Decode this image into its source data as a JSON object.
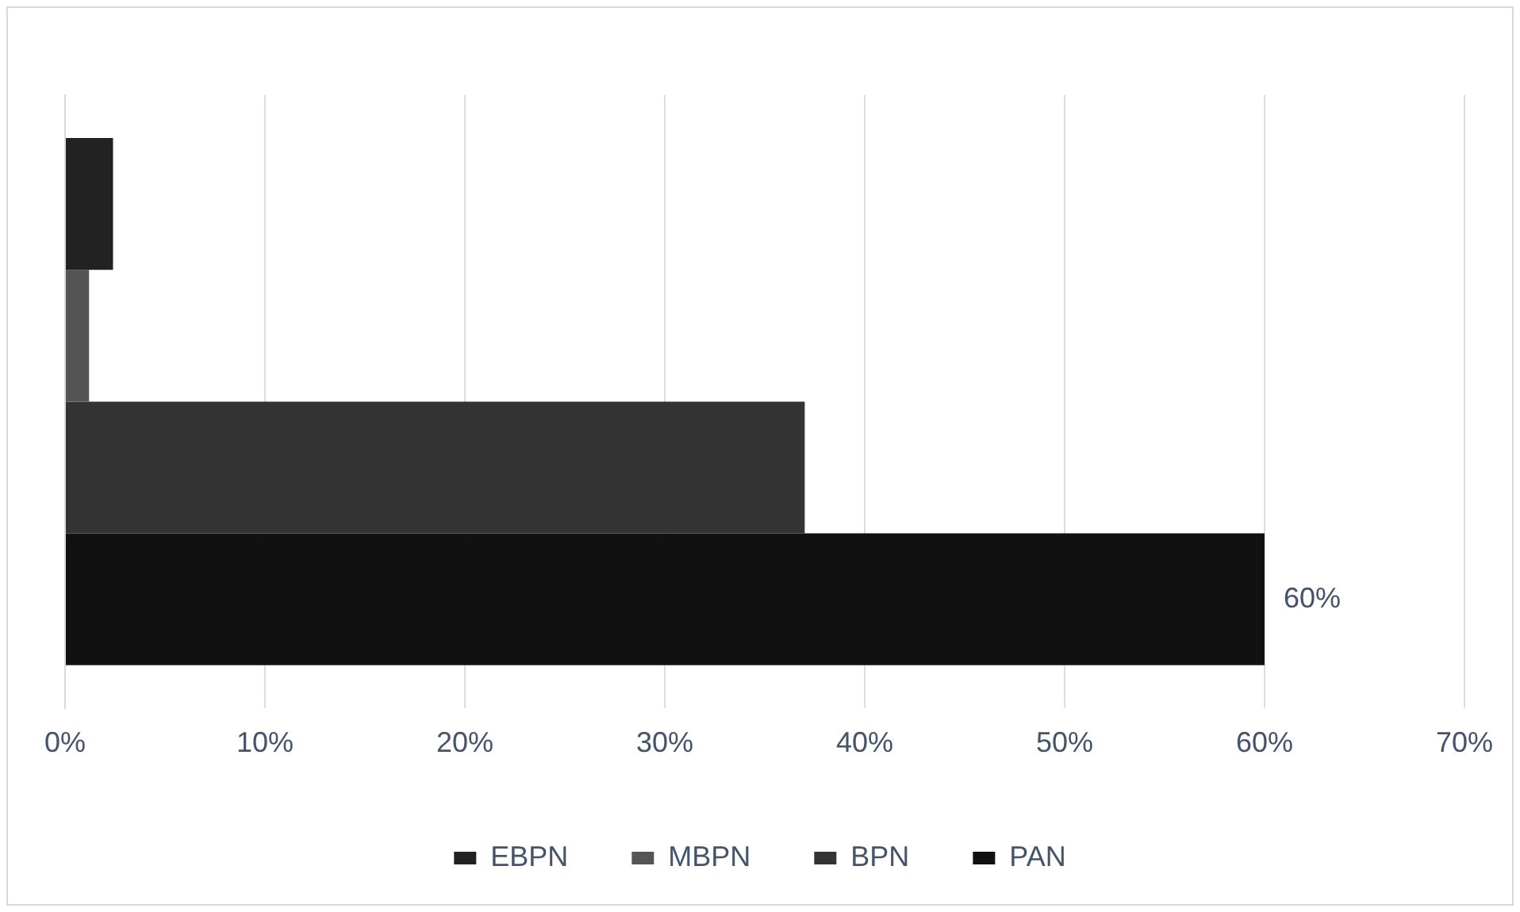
{
  "chart_data": {
    "type": "bar",
    "orientation": "horizontal",
    "categories": [
      null
    ],
    "series": [
      {
        "name": "EBPN",
        "color": "#222222",
        "values": [
          2.4
        ]
      },
      {
        "name": "MBPN",
        "color": "#555555",
        "values": [
          1.2
        ]
      },
      {
        "name": "BPN",
        "color": "#333333",
        "values": [
          37
        ]
      },
      {
        "name": "PAN",
        "color": "#111111",
        "values": [
          60
        ],
        "value_labels": [
          "60%"
        ]
      }
    ],
    "xlim": [
      0,
      70
    ],
    "xticks": [
      {
        "value": 0,
        "label": "0%"
      },
      {
        "value": 10,
        "label": "10%"
      },
      {
        "value": 20,
        "label": "20%"
      },
      {
        "value": 30,
        "label": "30%"
      },
      {
        "value": 40,
        "label": "40%"
      },
      {
        "value": 50,
        "label": "50%"
      },
      {
        "value": 60,
        "label": "60%"
      },
      {
        "value": 70,
        "label": "70%"
      }
    ],
    "grid": "x",
    "legend": "bottom"
  }
}
